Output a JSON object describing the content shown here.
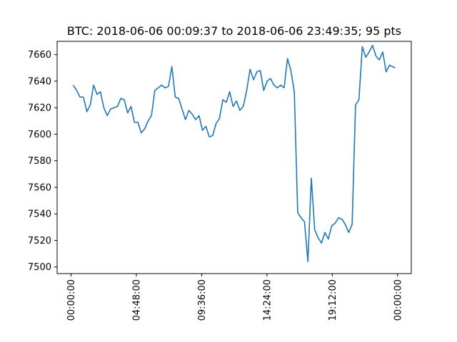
{
  "chart_data": {
    "type": "line",
    "title": "BTC: 2018-06-06 00:09:37 to 2018-06-06 23:49:35; 95 pts",
    "xlabel": "",
    "ylabel": "",
    "ylim": [
      7495,
      7670
    ],
    "yticks": [
      7500,
      7520,
      7540,
      7560,
      7580,
      7600,
      7620,
      7640,
      7660
    ],
    "xticks": [
      "00:00:00",
      "04:48:00",
      "09:36:00",
      "14:24:00",
      "19:12:00",
      "00:00:00"
    ],
    "grid": false,
    "line_color": "#1f77b4",
    "series": [
      {
        "x": [
          "00:09:37",
          "00:24:37",
          "00:39:37",
          "00:54:37",
          "01:09:37",
          "01:24:37",
          "01:39:37",
          "01:54:37",
          "02:09:37",
          "02:24:37",
          "02:39:37",
          "02:54:37",
          "03:09:37",
          "03:24:37",
          "03:39:37",
          "03:54:37",
          "04:09:37",
          "04:24:37",
          "04:39:37",
          "04:54:37",
          "05:09:37",
          "05:24:37",
          "05:39:37",
          "05:54:37",
          "06:09:37",
          "06:24:37",
          "06:39:37",
          "06:54:37",
          "07:09:37",
          "07:24:37",
          "07:39:37",
          "07:54:37",
          "08:09:37",
          "08:24:37",
          "08:39:37",
          "08:54:37",
          "09:09:37",
          "09:24:37",
          "09:39:37",
          "09:54:37",
          "10:09:37",
          "10:24:37",
          "10:39:37",
          "10:54:37",
          "11:09:37",
          "11:24:37",
          "11:39:37",
          "11:54:37",
          "12:09:37",
          "12:24:37",
          "12:39:37",
          "12:54:37",
          "13:09:37",
          "13:24:37",
          "13:39:37",
          "13:54:37",
          "14:09:37",
          "14:24:37",
          "14:39:37",
          "14:54:37",
          "15:09:37",
          "15:24:37",
          "15:39:37",
          "15:54:37",
          "16:09:37",
          "16:24:37",
          "16:39:37",
          "16:54:37",
          "17:09:37",
          "17:24:37",
          "17:39:37",
          "17:54:37",
          "18:09:37",
          "18:24:37",
          "18:39:37",
          "18:54:37",
          "19:09:37",
          "19:24:37",
          "19:39:37",
          "19:54:37",
          "20:09:37",
          "20:24:37",
          "20:39:37",
          "20:54:37",
          "21:09:37",
          "21:24:37",
          "21:39:37",
          "21:54:37",
          "22:09:37",
          "22:24:37",
          "22:39:37",
          "22:54:37",
          "23:09:37",
          "23:24:37",
          "23:49:35"
        ],
        "values": [
          7637,
          7633,
          7628,
          7628,
          7617,
          7622,
          7637,
          7630,
          7632,
          7620,
          7614,
          7619,
          7620,
          7621,
          7627,
          7626,
          7616,
          7621,
          7609,
          7609,
          7601,
          7604,
          7610,
          7614,
          7633,
          7635,
          7637,
          7635,
          7636,
          7651,
          7628,
          7627,
          7619,
          7611,
          7618,
          7615,
          7611,
          7614,
          7603,
          7606,
          7598,
          7599,
          7608,
          7612,
          7626,
          7624,
          7632,
          7621,
          7625,
          7618,
          7621,
          7633,
          7649,
          7641,
          7647,
          7648,
          7633,
          7640,
          7642,
          7637,
          7635,
          7637,
          7635,
          7657,
          7648,
          7632,
          7541,
          7537,
          7534,
          7504,
          7567,
          7528,
          7522,
          7518,
          7526,
          7521,
          7531,
          7533,
          7537,
          7536,
          7532,
          7526,
          7532,
          7622,
          7626,
          7666,
          7658,
          7662,
          7667,
          7659,
          7656,
          7662,
          7647,
          7652,
          7650
        ]
      }
    ]
  }
}
